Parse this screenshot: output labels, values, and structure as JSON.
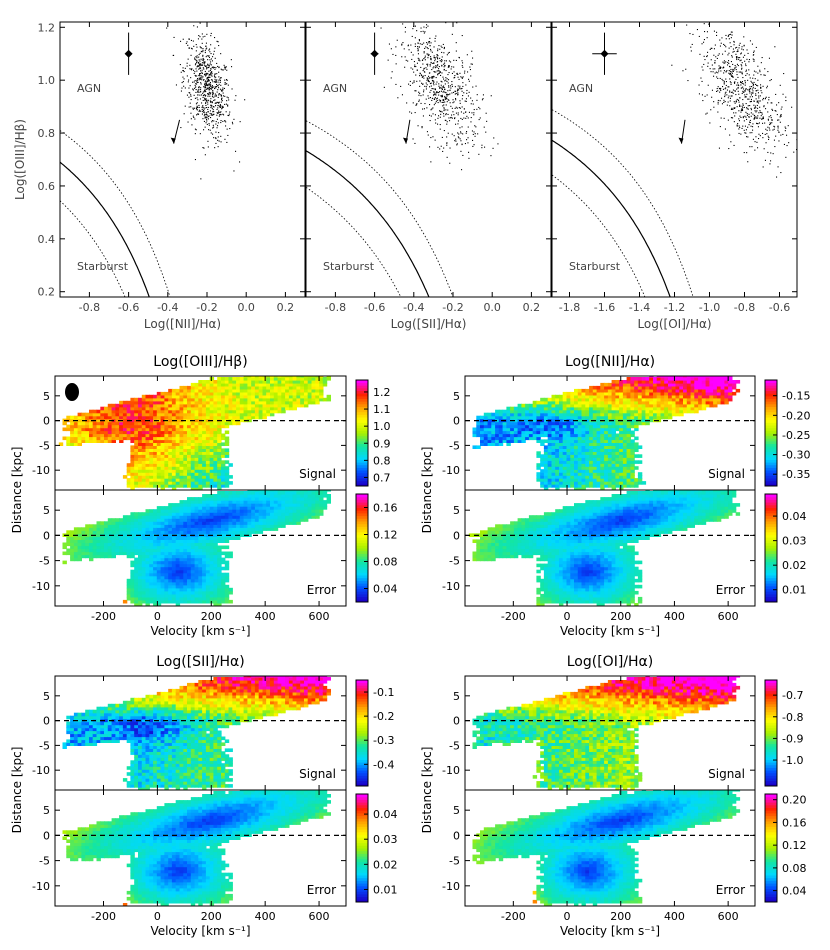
{
  "chart_data": [
    {
      "type": "scatter",
      "panel": "bpt-nii",
      "ylabel": "Log([OIII]/Hβ)",
      "xlabel": "Log([NII]/Hα)",
      "xlim": [
        -0.95,
        0.3
      ],
      "ylim": [
        0.18,
        1.22
      ],
      "xticks": [
        "-0.8",
        "-0.6",
        "-0.4",
        "-0.2",
        "0.0",
        "0.2"
      ],
      "yticks": [
        "0.2",
        "0.4",
        "0.6",
        "0.8",
        "1.0",
        "1.2"
      ],
      "annotations": [
        "AGN",
        "Starburst"
      ],
      "cloud_center": {
        "x": -0.2,
        "y": 0.97
      },
      "cloud_spread": {
        "x": 0.06,
        "y": 0.09
      },
      "error_point": {
        "x": -0.6,
        "y": 1.1,
        "xerr": 0.01,
        "yerr": 0.08
      },
      "arrow": {
        "from": [
          -0.34,
          0.85
        ],
        "to": [
          -0.37,
          0.76
        ]
      }
    },
    {
      "type": "scatter",
      "panel": "bpt-sii",
      "xlabel": "Log([SII]/Hα)",
      "xlim": [
        -0.95,
        0.3
      ],
      "ylim": [
        0.18,
        1.22
      ],
      "xticks": [
        "-0.8",
        "-0.6",
        "-0.4",
        "-0.2",
        "0.0",
        "0.2"
      ],
      "annotations": [
        "AGN",
        "Starburst"
      ],
      "cloud_center": {
        "x": -0.27,
        "y": 0.98
      },
      "cloud_spread": {
        "x": 0.1,
        "y": 0.1
      },
      "error_point": {
        "x": -0.6,
        "y": 1.1,
        "xerr": 0.02,
        "yerr": 0.08
      },
      "arrow": {
        "from": [
          -0.42,
          0.85
        ],
        "to": [
          -0.44,
          0.76
        ]
      }
    },
    {
      "type": "scatter",
      "panel": "bpt-oi",
      "xlabel": "Log([OI]/Hα)",
      "xlim": [
        -1.9,
        -0.5
      ],
      "ylim": [
        0.18,
        1.22
      ],
      "xticks": [
        "-1.8",
        "-1.6",
        "-1.4",
        "-1.2",
        "-1.0",
        "-0.8",
        "-0.6"
      ],
      "annotations": [
        "AGN",
        "Starburst"
      ],
      "cloud_center": {
        "x": -0.82,
        "y": 0.97
      },
      "cloud_spread": {
        "x": 0.12,
        "y": 0.1
      },
      "error_point": {
        "x": -1.6,
        "y": 1.1,
        "xerr": 0.07,
        "yerr": 0.08
      },
      "arrow": {
        "from": [
          -1.14,
          0.85
        ],
        "to": [
          -1.16,
          0.76
        ]
      }
    },
    {
      "type": "heatmap",
      "panel": "oiii-hb",
      "title": "Log([OIII]/Hβ)",
      "ylabel": "Distance [kpc]",
      "xlabel": "Velocity [km s⁻¹]",
      "xlim": [
        -380,
        700
      ],
      "ylim": [
        -14,
        9
      ],
      "xticks": [
        "-200",
        "0",
        "200",
        "400",
        "600"
      ],
      "yticks": [
        "5",
        "0",
        "-5",
        "-10"
      ],
      "beam": true,
      "signal": {
        "label": "Signal",
        "colorbar_range": [
          0.65,
          1.27
        ],
        "colorbar_ticks": [
          "1.2",
          "1.1",
          "1.0",
          "0.9",
          "0.8",
          "0.7"
        ]
      },
      "error": {
        "label": "Error",
        "colorbar_range": [
          0.02,
          0.18
        ],
        "colorbar_ticks": [
          "0.16",
          "0.12",
          "0.08",
          "0.04"
        ]
      }
    },
    {
      "type": "heatmap",
      "panel": "nii-ha",
      "title": "Log([NII]/Hα)",
      "ylabel": "Distance [kpc]",
      "xlabel": "Velocity [km s⁻¹]",
      "xlim": [
        -380,
        700
      ],
      "ylim": [
        -14,
        9
      ],
      "xticks": [
        "-200",
        "0",
        "200",
        "400",
        "600"
      ],
      "yticks": [
        "5",
        "0",
        "-5",
        "-10"
      ],
      "beam": false,
      "signal": {
        "label": "Signal",
        "colorbar_range": [
          -0.38,
          -0.11
        ],
        "colorbar_ticks": [
          "-0.15",
          "-0.20",
          "-0.25",
          "-0.30",
          "-0.35"
        ]
      },
      "error": {
        "label": "Error",
        "colorbar_range": [
          0.005,
          0.049
        ],
        "colorbar_ticks": [
          "0.04",
          "0.03",
          "0.02",
          "0.01"
        ]
      }
    },
    {
      "type": "heatmap",
      "panel": "sii-ha",
      "title": "Log([SII]/Hα)",
      "ylabel": "Distance [kpc]",
      "xlabel": "Velocity [km s⁻¹]",
      "xlim": [
        -380,
        700
      ],
      "ylim": [
        -14,
        9
      ],
      "xticks": [
        "-200",
        "0",
        "200",
        "400",
        "600"
      ],
      "yticks": [
        "5",
        "0",
        "-5",
        "-10"
      ],
      "beam": false,
      "signal": {
        "label": "Signal",
        "colorbar_range": [
          -0.49,
          -0.05
        ],
        "colorbar_ticks": [
          "-0.1",
          "-0.2",
          "-0.3",
          "-0.4"
        ]
      },
      "error": {
        "label": "Error",
        "colorbar_range": [
          0.005,
          0.048
        ],
        "colorbar_ticks": [
          "0.04",
          "0.03",
          "0.02",
          "0.01"
        ]
      }
    },
    {
      "type": "heatmap",
      "panel": "oi-ha",
      "title": "Log([OI]/Hα)",
      "ylabel": "Distance [kpc]",
      "xlabel": "Velocity [km s⁻¹]",
      "xlim": [
        -380,
        700
      ],
      "ylim": [
        -14,
        9
      ],
      "xticks": [
        "-200",
        "0",
        "200",
        "400",
        "600"
      ],
      "yticks": [
        "5",
        "0",
        "-5",
        "-10"
      ],
      "beam": false,
      "signal": {
        "label": "Signal",
        "colorbar_range": [
          -1.12,
          -0.63
        ],
        "colorbar_ticks": [
          "-0.7",
          "-0.8",
          "-0.9",
          "-1.0"
        ]
      },
      "error": {
        "label": "Error",
        "colorbar_range": [
          0.02,
          0.21
        ],
        "colorbar_ticks": [
          "0.20",
          "0.16",
          "0.12",
          "0.08",
          "0.04"
        ]
      }
    }
  ],
  "colors": {
    "colormap": [
      "#1a00c8",
      "#0050ff",
      "#00d8ff",
      "#14e6a0",
      "#a8f000",
      "#ffff00",
      "#ffa000",
      "#ff2000",
      "#ff00ff"
    ]
  }
}
